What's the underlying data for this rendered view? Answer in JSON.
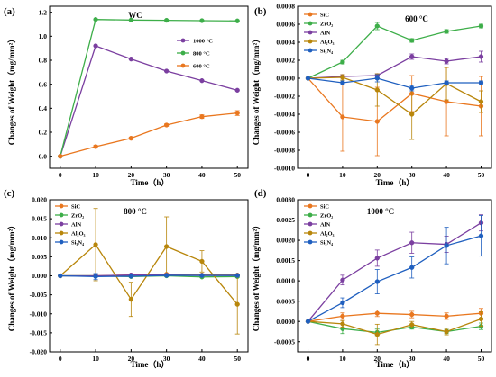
{
  "chart_data": [
    {
      "panel_label": "(a)",
      "type": "line",
      "title": "WC",
      "xlabel": "Time（h）",
      "ylabel": "Changes of Weight（mg/mm²）",
      "x": [
        0,
        10,
        20,
        30,
        40,
        50
      ],
      "xlim": [
        -3,
        53
      ],
      "xticks": [
        0,
        10,
        20,
        30,
        40,
        50
      ],
      "ylim": [
        -0.1,
        1.25
      ],
      "yticks": [
        0.0,
        0.2,
        0.4,
        0.6,
        0.8,
        1.0,
        1.2
      ],
      "ytick_labels": [
        "0.0",
        "0.2",
        "0.4",
        "0.6",
        "0.8",
        "1.0",
        "1.2"
      ],
      "legend": "right",
      "series": [
        {
          "name": "1000 °C",
          "color": "#7B3FA0",
          "values": [
            0.0,
            0.92,
            0.81,
            0.71,
            0.63,
            0.55
          ]
        },
        {
          "name": "800 °C",
          "color": "#3DAE49",
          "values": [
            0.0,
            1.14,
            1.135,
            1.133,
            1.13,
            1.128
          ]
        },
        {
          "name": "600 °C",
          "color": "#E9771F",
          "values": [
            0.0,
            0.08,
            0.15,
            0.26,
            0.33,
            0.36
          ],
          "err": [
            0,
            0.01,
            0.01,
            0.01,
            0.015,
            0.02
          ]
        }
      ]
    },
    {
      "panel_label": "(b)",
      "type": "line",
      "title": "600 °C",
      "xlabel": "Time（h）",
      "ylabel": "Changes of Weight（mg/mm²）",
      "x": [
        0,
        10,
        20,
        30,
        40,
        50
      ],
      "xlim": [
        -3,
        53
      ],
      "xticks": [
        0,
        10,
        20,
        30,
        40,
        50
      ],
      "ylim": [
        -0.001,
        0.0008
      ],
      "yticks": [
        -0.001,
        -0.0008,
        -0.0006,
        -0.0004,
        -0.0002,
        0.0,
        0.0002,
        0.0004,
        0.0006,
        0.0008
      ],
      "ytick_labels": [
        "-0.0010",
        "-0.0008",
        "-0.0006",
        "-0.0004",
        "-0.0002",
        "0.0000",
        "0.0002",
        "0.0004",
        "0.0006",
        "0.0008"
      ],
      "legend": "top-left",
      "series": [
        {
          "name": "SiC",
          "color": "#E9771F",
          "values": [
            0.0,
            -0.00043,
            -0.00048,
            -0.00017,
            -0.00026,
            -0.00031
          ],
          "err": [
            0,
            0.00038,
            0.00038,
            0.0002,
            0.00038,
            0.00033
          ]
        },
        {
          "name": "ZrO₂",
          "color": "#3DAE49",
          "values": [
            0.0,
            0.00018,
            0.00058,
            0.00042,
            0.00052,
            0.00058
          ],
          "err": [
            0,
            2e-05,
            4e-05,
            2e-05,
            2e-05,
            2e-05
          ]
        },
        {
          "name": "AlN",
          "color": "#7B3FA0",
          "values": [
            0.0,
            2e-05,
            3e-05,
            0.00024,
            0.00019,
            0.00024
          ],
          "err": [
            0,
            2e-05,
            2e-05,
            3e-05,
            3e-05,
            6e-05
          ]
        },
        {
          "name": "Al₂O₃",
          "color": "#B8860B",
          "values": [
            0.0,
            1e-05,
            -0.00013,
            -0.0004,
            -6e-05,
            -0.00026
          ],
          "err": [
            0,
            3e-05,
            0.00018,
            0.00028,
            0.00018,
            0.00012
          ]
        },
        {
          "name": "Si₃N₄",
          "color": "#1F5FBF",
          "values": [
            0.0,
            -5e-05,
            0.0,
            -0.00011,
            -5e-05,
            -5e-05
          ],
          "err": [
            0,
            2e-05,
            4e-05,
            3e-05,
            2e-05,
            2e-05
          ]
        }
      ]
    },
    {
      "panel_label": "(c)",
      "type": "line",
      "title": "800 °C",
      "xlabel": "Time（h）",
      "ylabel": "Changes of Weight（mg/mm²）",
      "x": [
        0,
        10,
        20,
        30,
        40,
        50
      ],
      "xlim": [
        -3,
        53
      ],
      "xticks": [
        0,
        10,
        20,
        30,
        40,
        50
      ],
      "ylim": [
        -0.02,
        0.02
      ],
      "yticks": [
        -0.02,
        -0.015,
        -0.01,
        -0.005,
        0.0,
        0.005,
        0.01,
        0.015,
        0.02
      ],
      "ytick_labels": [
        "-0.020",
        "-0.015",
        "-0.010",
        "-0.005",
        "0.000",
        "0.005",
        "0.010",
        "0.015",
        "0.020"
      ],
      "legend": "top-left",
      "series": [
        {
          "name": "SiC",
          "color": "#E9771F",
          "values": [
            0.0,
            0.0,
            0.0002,
            0.0004,
            0.0002,
            0.0002
          ],
          "err": [
            0,
            0.0002,
            0.0002,
            0.0002,
            0.0002,
            0.0002
          ]
        },
        {
          "name": "ZrO₂",
          "color": "#3DAE49",
          "values": [
            0.0,
            0.0,
            -0.0002,
            0.0,
            -0.0003,
            -0.0002
          ],
          "err": [
            0,
            0.0002,
            0.0002,
            0.0002,
            0.0002,
            0.0002
          ]
        },
        {
          "name": "AlN",
          "color": "#7B3FA0",
          "values": [
            0.0,
            0.0,
            0.0002,
            0.0002,
            0.0001,
            0.0001
          ],
          "err": [
            0,
            0.0001,
            0.0001,
            0.0001,
            0.0001,
            0.0001
          ]
        },
        {
          "name": "Al₂O₃",
          "color": "#B8860B",
          "values": [
            0.0,
            0.0082,
            -0.0062,
            0.0077,
            0.0038,
            -0.0075
          ],
          "err": [
            0,
            0.0095,
            0.0045,
            0.0078,
            0.0028,
            0.0078
          ]
        },
        {
          "name": "Si₃N₄",
          "color": "#1F5FBF",
          "values": [
            0.0,
            -0.0002,
            -0.0001,
            0.0001,
            0.0001,
            0.0001
          ],
          "err": [
            0,
            0.0008,
            0.0001,
            0.0001,
            0.0001,
            0.0001
          ]
        }
      ]
    },
    {
      "panel_label": "(d)",
      "type": "line",
      "title": "1000 °C",
      "xlabel": "Time（h）",
      "ylabel": "Changes of Weight（mg/mm²）",
      "x": [
        0,
        10,
        20,
        30,
        40,
        50
      ],
      "xlim": [
        -3,
        53
      ],
      "xticks": [
        0,
        10,
        20,
        30,
        40,
        50
      ],
      "ylim": [
        -0.00075,
        0.003
      ],
      "yticks": [
        -0.0005,
        0.0,
        0.0005,
        0.001,
        0.0015,
        0.002,
        0.0025,
        0.003
      ],
      "ytick_labels": [
        "-0.0005",
        "0.0000",
        "0.0005",
        "0.0010",
        "0.0015",
        "0.0020",
        "0.0025",
        "0.0030"
      ],
      "legend": "top-left",
      "series": [
        {
          "name": "SiC",
          "color": "#E9771F",
          "values": [
            0.0,
            0.00013,
            0.0002,
            0.00017,
            0.00013,
            0.0002
          ],
          "err": [
            0,
            8e-05,
            8e-05,
            8e-05,
            8e-05,
            0.00012
          ]
        },
        {
          "name": "ZrO₂",
          "color": "#3DAE49",
          "values": [
            0.0,
            -0.00018,
            -0.00027,
            -0.00014,
            -0.00025,
            -0.00012
          ],
          "err": [
            0,
            0.00012,
            8e-05,
            5e-05,
            5e-05,
            8e-05
          ]
        },
        {
          "name": "AlN",
          "color": "#7B3FA0",
          "values": [
            0.0,
            0.00102,
            0.00156,
            0.00194,
            0.0019,
            0.00243
          ],
          "err": [
            0,
            0.00012,
            0.0002,
            0.00026,
            0.0002,
            0.0002
          ]
        },
        {
          "name": "Al₂O₃",
          "color": "#B8860B",
          "values": [
            0.0,
            -6e-05,
            -0.00032,
            -8e-05,
            -0.00025,
            6e-05
          ],
          "err": [
            0,
            8e-05,
            0.00025,
            8e-05,
            8e-05,
            0.00018
          ]
        },
        {
          "name": "Si₃N₄",
          "color": "#1F5FBF",
          "values": [
            0.0,
            0.00046,
            0.00098,
            0.00133,
            0.00187,
            0.00211
          ],
          "err": [
            0,
            0.00012,
            0.0003,
            0.00026,
            0.00045,
            0.0005
          ]
        }
      ]
    }
  ]
}
